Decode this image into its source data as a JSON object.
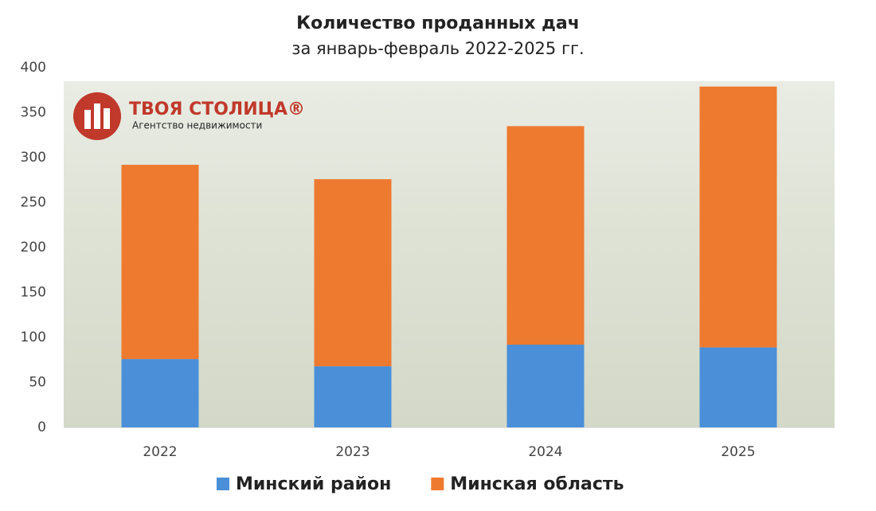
{
  "chart_data": {
    "type": "stacked_bar",
    "title": "Количество проданных дач",
    "subtitle": "за январь-февраль 2022-2025 гг.",
    "logo": {
      "name": "ТВОЯ СТОЛИЦА®",
      "tagline": "Агентство недвижимости"
    },
    "categories": [
      "2022",
      "2023",
      "2024",
      "2025"
    ],
    "series": [
      {
        "name": "Минский район",
        "color": "#4a8fd8",
        "values": [
          76,
          68,
          92,
          89
        ]
      },
      {
        "name": "Минская область",
        "color": "#ee7a30",
        "values": [
          216,
          208,
          243,
          290
        ]
      }
    ],
    "ylim": [
      0,
      400
    ],
    "yticks": [
      0,
      50,
      100,
      150,
      200,
      250,
      300,
      350,
      400
    ],
    "grid": false
  }
}
